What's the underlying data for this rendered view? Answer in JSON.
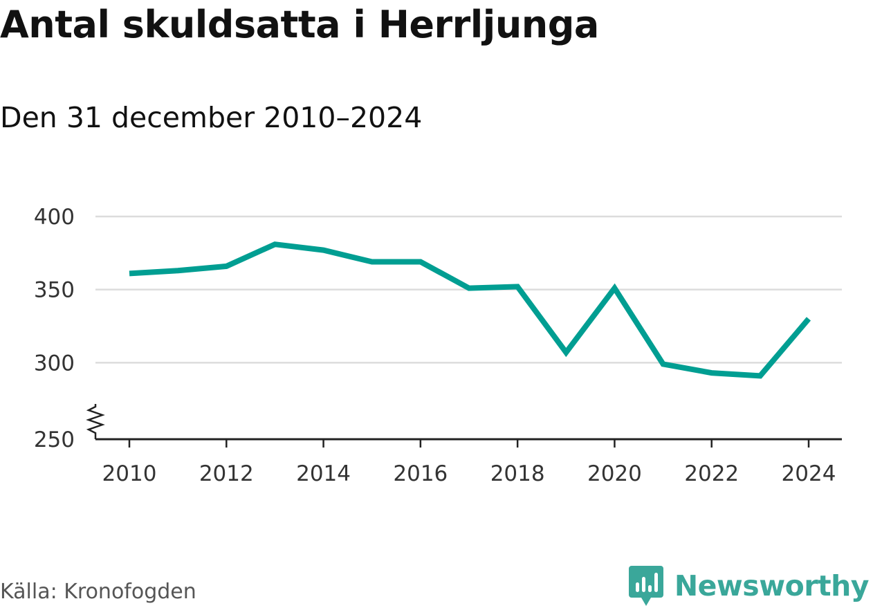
{
  "chart_data": {
    "type": "line",
    "title": "Antal skuldsatta i Herrljunga",
    "subtitle": "Den 31 december 2010–2024",
    "x": [
      2010,
      2011,
      2012,
      2013,
      2014,
      2015,
      2016,
      2017,
      2018,
      2019,
      2020,
      2021,
      2022,
      2023,
      2024
    ],
    "series": [
      {
        "values": [
          361,
          363,
          366,
          381,
          377,
          369,
          369,
          351,
          352,
          307,
          351,
          299,
          293,
          291,
          330
        ]
      }
    ],
    "xticks": [
      "2010",
      "2012",
      "2014",
      "2016",
      "2018",
      "2020",
      "2022",
      "2024"
    ],
    "yticks": [
      "250",
      "300",
      "350",
      "400"
    ],
    "xlim": [
      2010,
      2024
    ],
    "ylim": [
      250,
      400
    ],
    "y_axis_break": true,
    "grid": true,
    "line_color": "#009e92",
    "grid_color": "#dcdcdc",
    "axis_color": "#222222"
  },
  "footer": {
    "source": "Källa: Kronofogden",
    "brand": "Newsworthy",
    "brand_color": "#3aa79a",
    "brand_icon": "newsworthy-logo-icon"
  }
}
